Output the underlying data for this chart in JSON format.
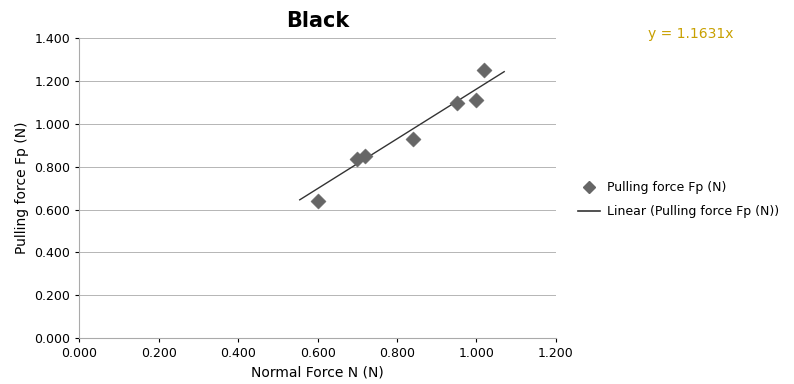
{
  "title": "Black",
  "xlabel": "Normal Force N (N)",
  "ylabel": "Pulling force Fp (N)",
  "x_data": [
    0.6,
    0.7,
    0.72,
    0.84,
    0.95,
    1.0,
    1.02
  ],
  "y_data": [
    0.64,
    0.835,
    0.85,
    0.93,
    1.1,
    1.11,
    1.25
  ],
  "slope": 1.1631,
  "equation_text": "y = 1.1631x",
  "equation_color": "#C8A000",
  "xlim": [
    0.0,
    1.2
  ],
  "ylim": [
    0.0,
    1.4
  ],
  "xticks": [
    0.0,
    0.2,
    0.4,
    0.6,
    0.8,
    1.0,
    1.2
  ],
  "yticks": [
    0.0,
    0.2,
    0.4,
    0.6,
    0.8,
    1.0,
    1.2,
    1.4
  ],
  "marker_color": "#666666",
  "line_color": "#333333",
  "legend_marker_label": "Pulling force Fp (N)",
  "legend_line_label": "Linear (Pulling force Fp (N))",
  "title_fontsize": 15,
  "axis_label_fontsize": 10,
  "tick_fontsize": 9,
  "legend_fontsize": 9,
  "equation_fontsize": 10,
  "line_x_start": 0.555,
  "line_x_end": 1.07
}
